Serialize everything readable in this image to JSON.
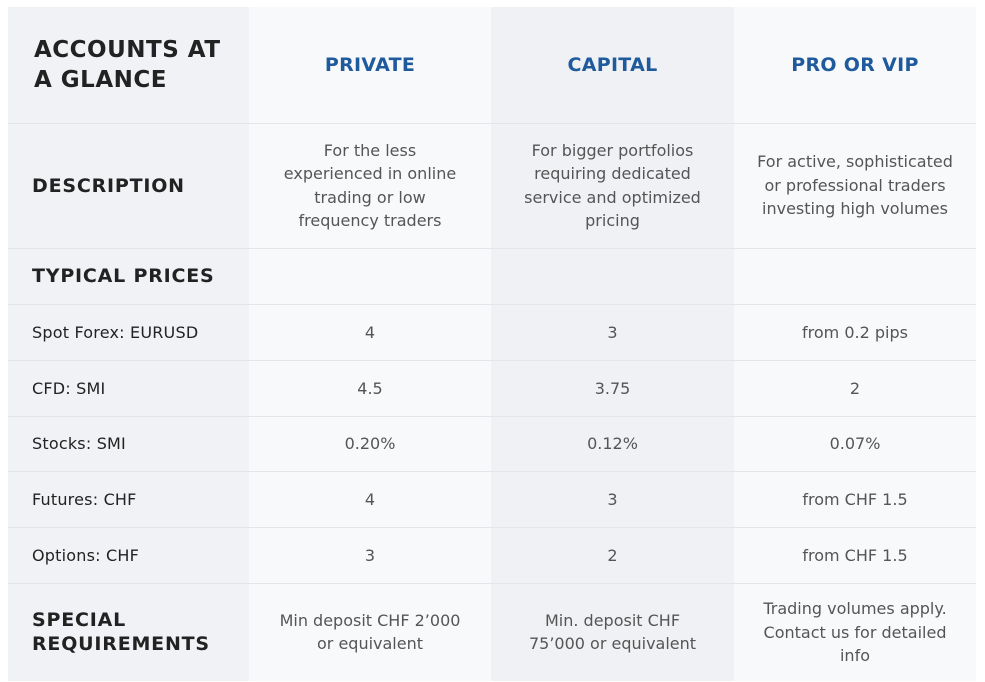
{
  "header": {
    "title": "ACCOUNTS AT A GLANCE",
    "columns": [
      "PRIVATE",
      "CAPITAL",
      "PRO OR VIP"
    ]
  },
  "description": {
    "label": "DESCRIPTION",
    "values": [
      "For the less experienced in online trading or low frequency traders",
      "For bigger portfolios requiring dedicated service and optimized pricing",
      "For active, sophisticated or professional traders investing high volumes"
    ]
  },
  "typical_prices": {
    "label": "TYPICAL PRICES",
    "rows": [
      {
        "label": "Spot Forex: EURUSD",
        "values": [
          "4",
          "3",
          "from 0.2 pips"
        ]
      },
      {
        "label": "CFD: SMI",
        "values": [
          "4.5",
          "3.75",
          "2"
        ]
      },
      {
        "label": "Stocks: SMI",
        "values": [
          "0.20%",
          "0.12%",
          "0.07%"
        ]
      },
      {
        "label": "Futures: CHF",
        "values": [
          "4",
          "3",
          "from CHF 1.5"
        ]
      },
      {
        "label": "Options: CHF",
        "values": [
          "3",
          "2",
          "from CHF 1.5"
        ]
      }
    ]
  },
  "special_requirements": {
    "label": "SPECIAL REQUIREMENTS",
    "values": [
      "Min deposit CHF 2’000 or equivalent",
      "Min. deposit CHF 75’000 or equivalent",
      "Trading volumes apply. Contact us for detailed info"
    ]
  },
  "colors": {
    "accent": "#1f5a9c",
    "label_column_bg": "#f0f2f5",
    "alt_column_bg": "#eff1f4",
    "cell_bg": "#f8f9fb",
    "divider": "#e2e6ea"
  }
}
